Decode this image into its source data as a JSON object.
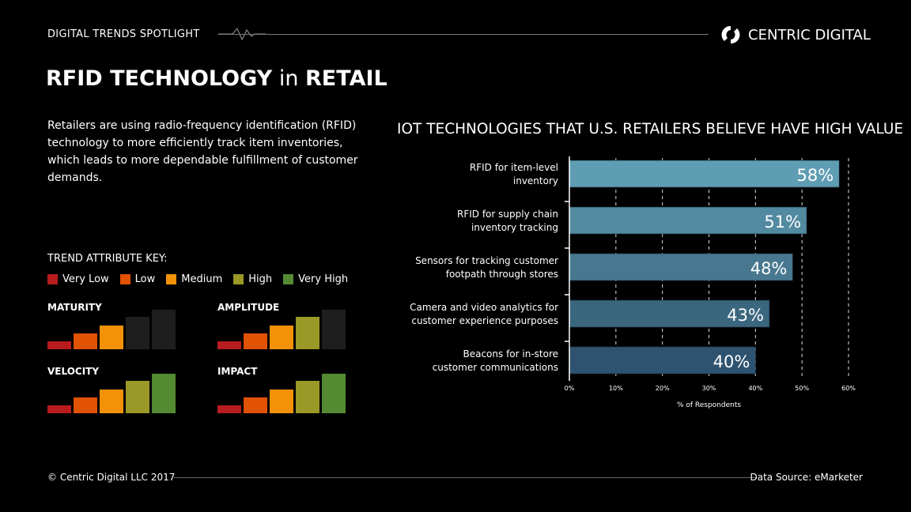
{
  "header": {
    "spotlight": "DIGITAL TRENDS SPOTLIGHT",
    "brand": "CENTRIC DIGITAL",
    "title_bold_1": "RFID TECHNOLOGY",
    "title_mid": " in ",
    "title_bold_2": "RETAIL"
  },
  "intro": "Retailers are using radio-frequency identification (RFID) technology to more efficiently track item inventories, which leads to more dependable fulfillment of customer demands.",
  "trend_key": {
    "title": "TREND ATTRIBUTE KEY:",
    "levels": [
      {
        "label": "Very Low",
        "color": "#b81c1f"
      },
      {
        "label": "Low",
        "color": "#e25203"
      },
      {
        "label": "Medium",
        "color": "#f39207"
      },
      {
        "label": "High",
        "color": "#9a9826"
      },
      {
        "label": "Very High",
        "color": "#548b32"
      }
    ],
    "inactive_color": "#1e1e1e"
  },
  "attributes": [
    {
      "label": "MATURITY",
      "level": 3
    },
    {
      "label": "AMPLITUDE",
      "level": 4
    },
    {
      "label": "VELOCITY",
      "level": 5
    },
    {
      "label": "IMPACT",
      "level": 5
    }
  ],
  "chart_data": {
    "type": "bar",
    "orientation": "horizontal",
    "title": "IOT TECHNOLOGIES THAT U.S. RETAILERS BELIEVE HAVE HIGH VALUE",
    "categories": [
      "RFID for item-level inventory",
      "RFID for supply chain inventory tracking",
      "Sensors for tracking customer footpath through stores",
      "Camera and video analytics for customer experience purposes",
      "Beacons for in-store customer communications"
    ],
    "category_lines": [
      [
        "RFID for item-level",
        "inventory"
      ],
      [
        "RFID for supply chain",
        "inventory tracking"
      ],
      [
        "Sensors for tracking customer",
        "footpath through stores"
      ],
      [
        "Camera and video analytics for",
        "customer experience purposes"
      ],
      [
        "Beacons for in-store",
        "customer communications"
      ]
    ],
    "values": [
      58,
      51,
      48,
      43,
      40
    ],
    "data_labels": [
      "58%",
      "51%",
      "48%",
      "43%",
      "40%"
    ],
    "xlabel": "% of Respondents",
    "xlim": [
      0,
      60
    ],
    "ticks": [
      "0%",
      "10%",
      "20%",
      "30%",
      "40%",
      "50%",
      "60%"
    ],
    "grid": "vertical dashed",
    "colors": [
      "#5f9db3",
      "#528aa1",
      "#47788f",
      "#3a667e",
      "#2e5370"
    ]
  },
  "footer": {
    "copyright": "© Centric Digital LLC 2017",
    "source": "Data Source: eMarketer"
  }
}
